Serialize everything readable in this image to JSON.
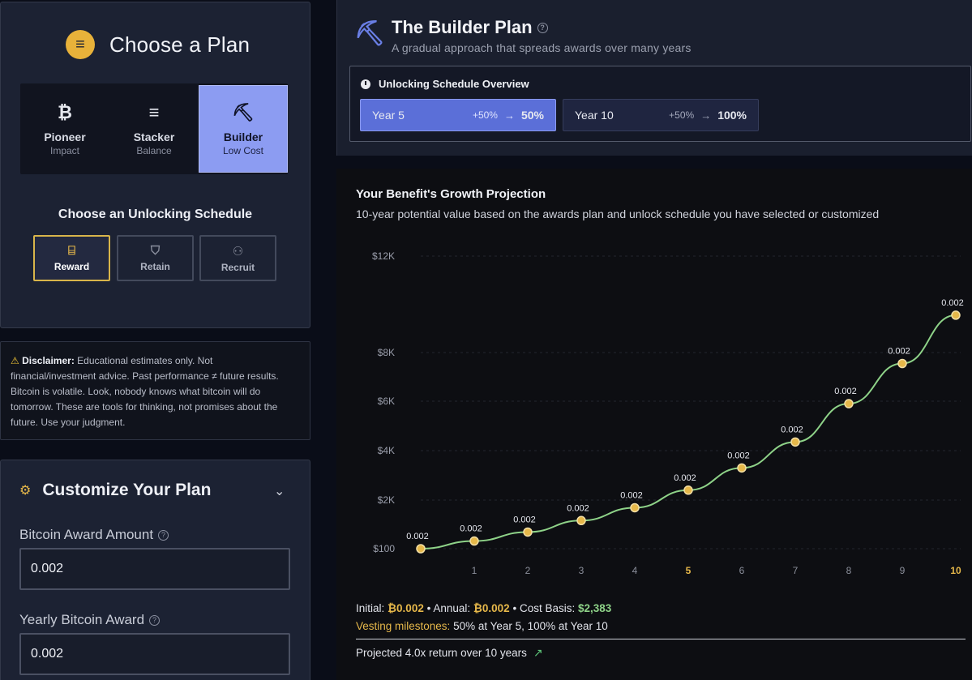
{
  "choose_plan": {
    "title": "Choose a Plan",
    "plans": [
      {
        "name": "Pioneer",
        "sub": "Impact",
        "icon": "bitcoin-icon",
        "glyph": "₿"
      },
      {
        "name": "Stacker",
        "sub": "Balance",
        "icon": "coin-stack-icon",
        "glyph": "≡"
      },
      {
        "name": "Builder",
        "sub": "Low Cost",
        "icon": "pickaxe-icon",
        "glyph": "⛏"
      }
    ],
    "selected": "Builder"
  },
  "schedule": {
    "heading": "Choose an Unlocking Schedule",
    "options": [
      {
        "label": "Reward",
        "icon": "gift-icon",
        "glyph": "🎁"
      },
      {
        "label": "Retain",
        "icon": "shield-icon",
        "glyph": "⛉"
      },
      {
        "label": "Recruit",
        "icon": "user-plus-icon",
        "glyph": "👤"
      }
    ],
    "selected": "Reward"
  },
  "disclaimer": {
    "label": "Disclaimer:",
    "text": " Educational estimates only. Not financial/investment advice. Past performance ≠ future results. Bitcoin is volatile. Look, nobody knows what bitcoin will do tomorrow. These are tools for thinking, not promises about the future. Use your judgment."
  },
  "customize": {
    "title": "Customize Your Plan",
    "fields": [
      {
        "label": "Bitcoin Award Amount",
        "value": "0.002"
      },
      {
        "label": "Yearly Bitcoin Award",
        "value": "0.002"
      }
    ]
  },
  "builder": {
    "title": "The Builder Plan",
    "subtitle": "A gradual approach that spreads awards over many years",
    "overview_title": "Unlocking Schedule Overview",
    "milestones": [
      {
        "year": "Year 5",
        "pct": "+50%",
        "arrow": "→",
        "total": "50%"
      },
      {
        "year": "Year 10",
        "pct": "+50%",
        "arrow": "→",
        "total": "100%"
      }
    ]
  },
  "chart_panel": {
    "title": "Your Benefit's Growth Projection",
    "subtitle": "10-year potential value based on the awards plan and unlock schedule you have selected or customized"
  },
  "chart_data": {
    "type": "line",
    "x": [
      0,
      1,
      2,
      3,
      4,
      5,
      6,
      7,
      8,
      9,
      10
    ],
    "x_tick_labels": [
      "",
      "1",
      "2",
      "3",
      "4",
      "5",
      "6",
      "7",
      "8",
      "9",
      "10"
    ],
    "highlighted_ticks": [
      "5",
      "10"
    ],
    "y_tick_labels": [
      "$100",
      "$2K",
      "$4K",
      "$6K",
      "$8K",
      "$12K"
    ],
    "y_tick_values": [
      100,
      2000,
      4000,
      6000,
      8000,
      12000
    ],
    "values": [
      100,
      400,
      750,
      1200,
      1700,
      2400,
      3300,
      4350,
      5900,
      7550,
      9550
    ],
    "point_labels": [
      "0.002",
      "0.002",
      "0.002",
      "0.002",
      "0.002",
      "0.002",
      "0.002",
      "0.002",
      "0.002",
      "0.002",
      "0.002"
    ],
    "line_color": "#8ed288",
    "point_color": "#e6b84a",
    "grid": true
  },
  "summary": {
    "initial_label": "Initial:",
    "initial_value": "₿0.002",
    "annual_label": "Annual:",
    "annual_value": "₿0.002",
    "cost_label": "Cost Basis:",
    "cost_value": "$2,383",
    "vesting_label": "Vesting milestones:",
    "vesting_value": " 50% at Year 5, 100% at Year 10",
    "projection": "Projected 4.0x return over 10 years"
  }
}
